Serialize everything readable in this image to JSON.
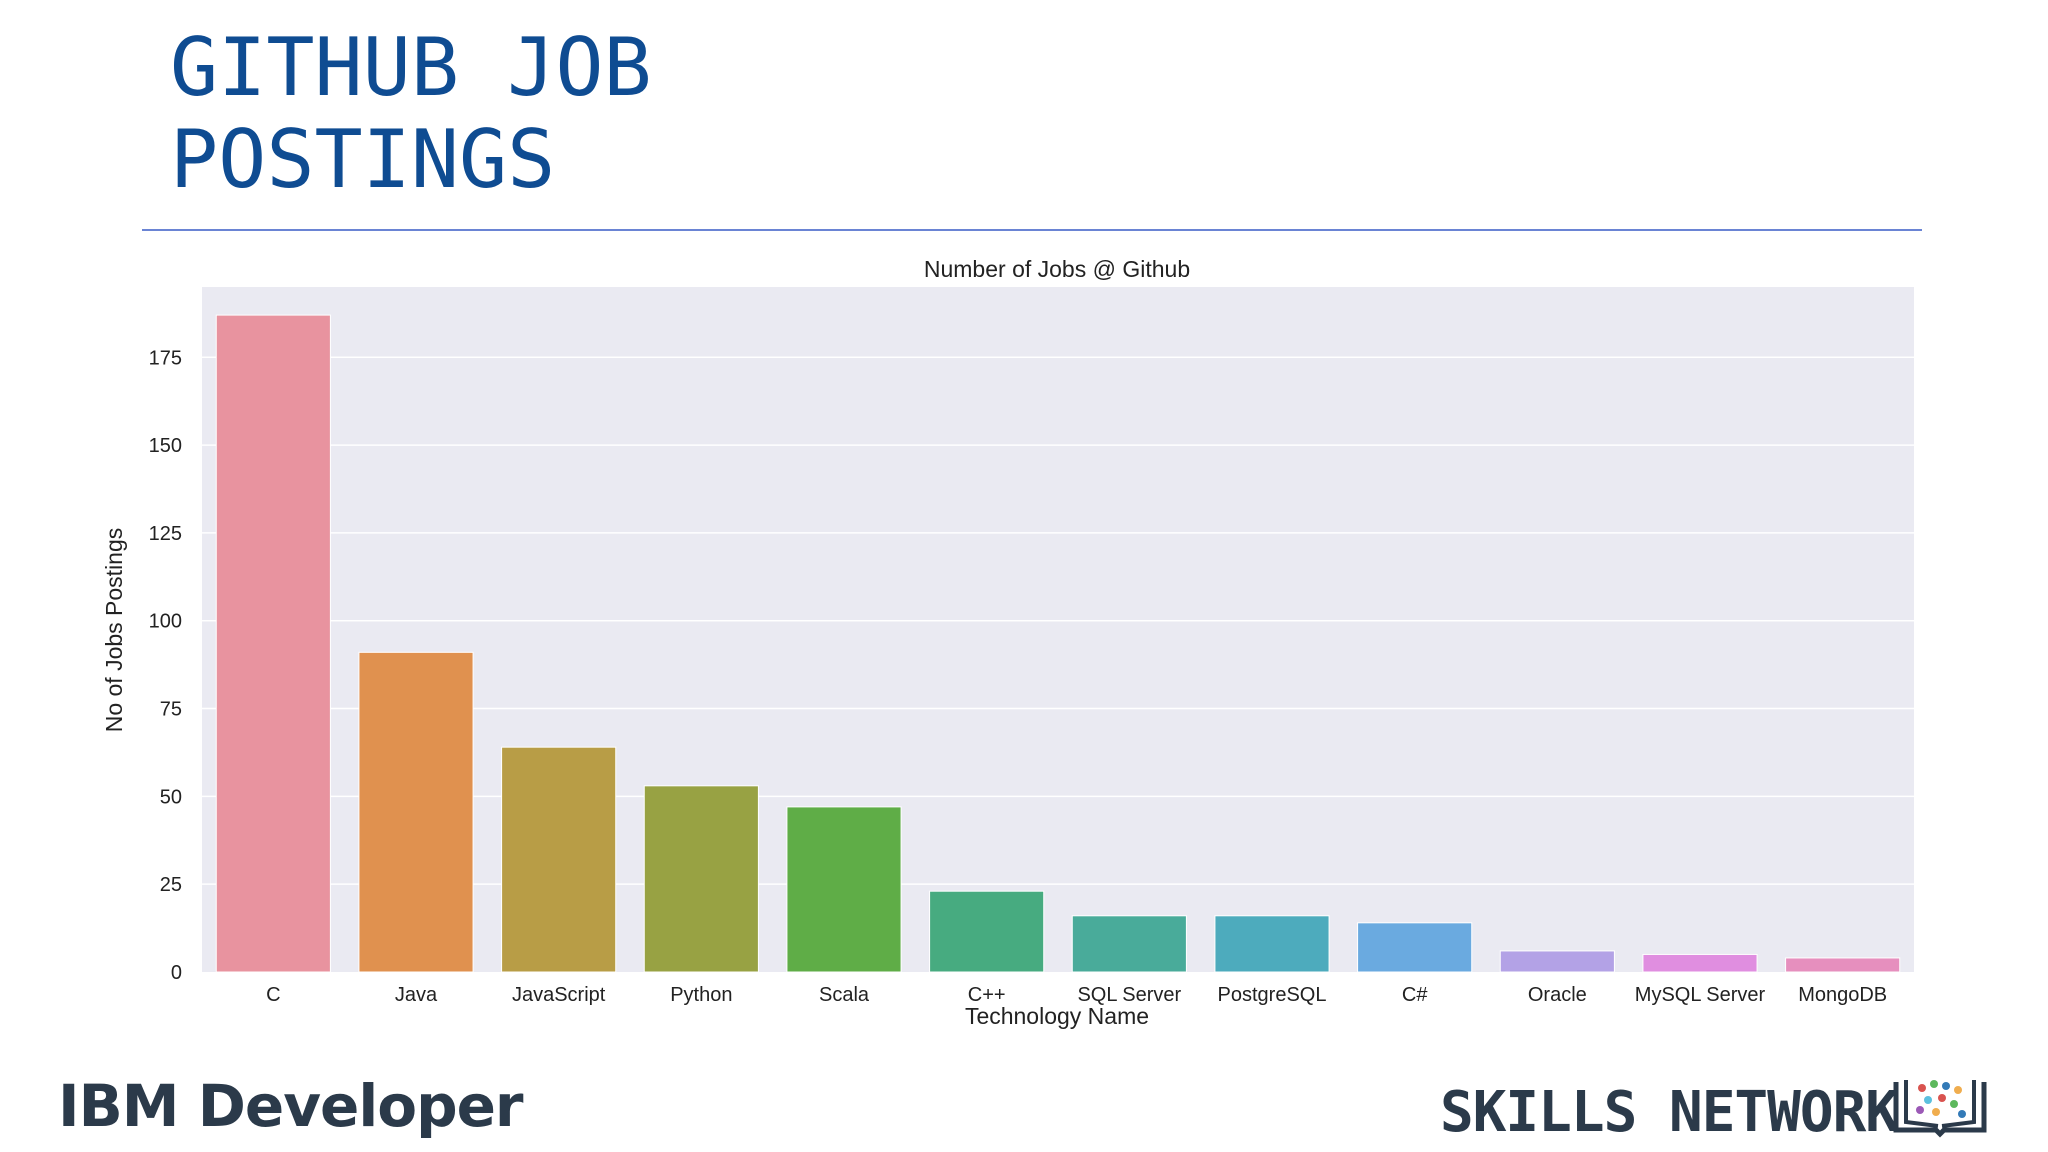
{
  "slide": {
    "title_line1": "GITHUB JOB",
    "title_line2": "POSTINGS"
  },
  "branding": {
    "left_bold": "IBM",
    "left_rest": "Developer",
    "right": "SKILLS NETWORK",
    "right_icon": "books-icon"
  },
  "colors": {
    "title": "#0f4c92",
    "plot_background": "#eaeaf2",
    "gridline": "#ffffff"
  },
  "chart_data": {
    "type": "bar",
    "title": "Number of Jobs @ Github",
    "xlabel": "Technology Name",
    "ylabel": "No of Jobs Postings",
    "categories": [
      "C",
      "Java",
      "JavaScript",
      "Python",
      "Scala",
      "C++",
      "SQL Server",
      "PostgreSQL",
      "C#",
      "Oracle",
      "MySQL Server",
      "MongoDB"
    ],
    "values": [
      187,
      91,
      64,
      53,
      47,
      23,
      16,
      16,
      14,
      6,
      5,
      4
    ],
    "colors": [
      "#e8939f",
      "#e0914f",
      "#b89d46",
      "#98a243",
      "#5fad47",
      "#47ab80",
      "#49ab9a",
      "#4dabbd",
      "#6aaae0",
      "#b3a2e6",
      "#e08ee0",
      "#e68fbe"
    ],
    "ylim": [
      0,
      195
    ],
    "yticks": [
      0,
      25,
      50,
      75,
      100,
      125,
      150,
      175
    ],
    "grid": true
  }
}
